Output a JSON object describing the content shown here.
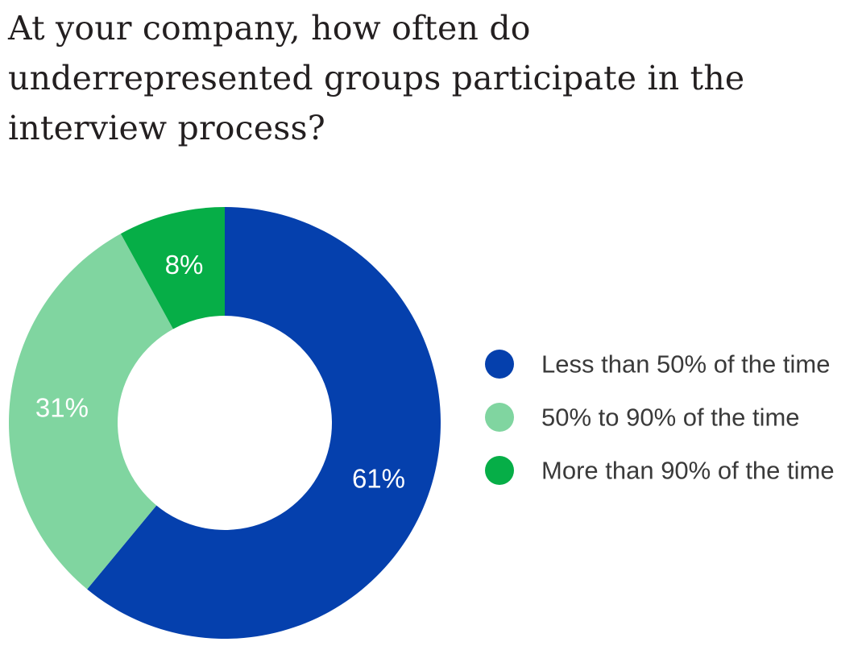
{
  "title": "At your company, how often do underrepresented groups participate in the interview process?",
  "chart_data": {
    "type": "pie",
    "style": "donut",
    "categories": [
      "Less than 50% of the time",
      "50% to 90% of the time",
      "More than 90% of the time"
    ],
    "values": [
      61,
      31,
      8
    ],
    "data_labels": [
      "61%",
      "31%",
      "8%"
    ],
    "colors": [
      "#0540ad",
      "#80d5a0",
      "#06ae47"
    ],
    "start_angle": "12 o'clock, clockwise",
    "legend_position": "right"
  }
}
